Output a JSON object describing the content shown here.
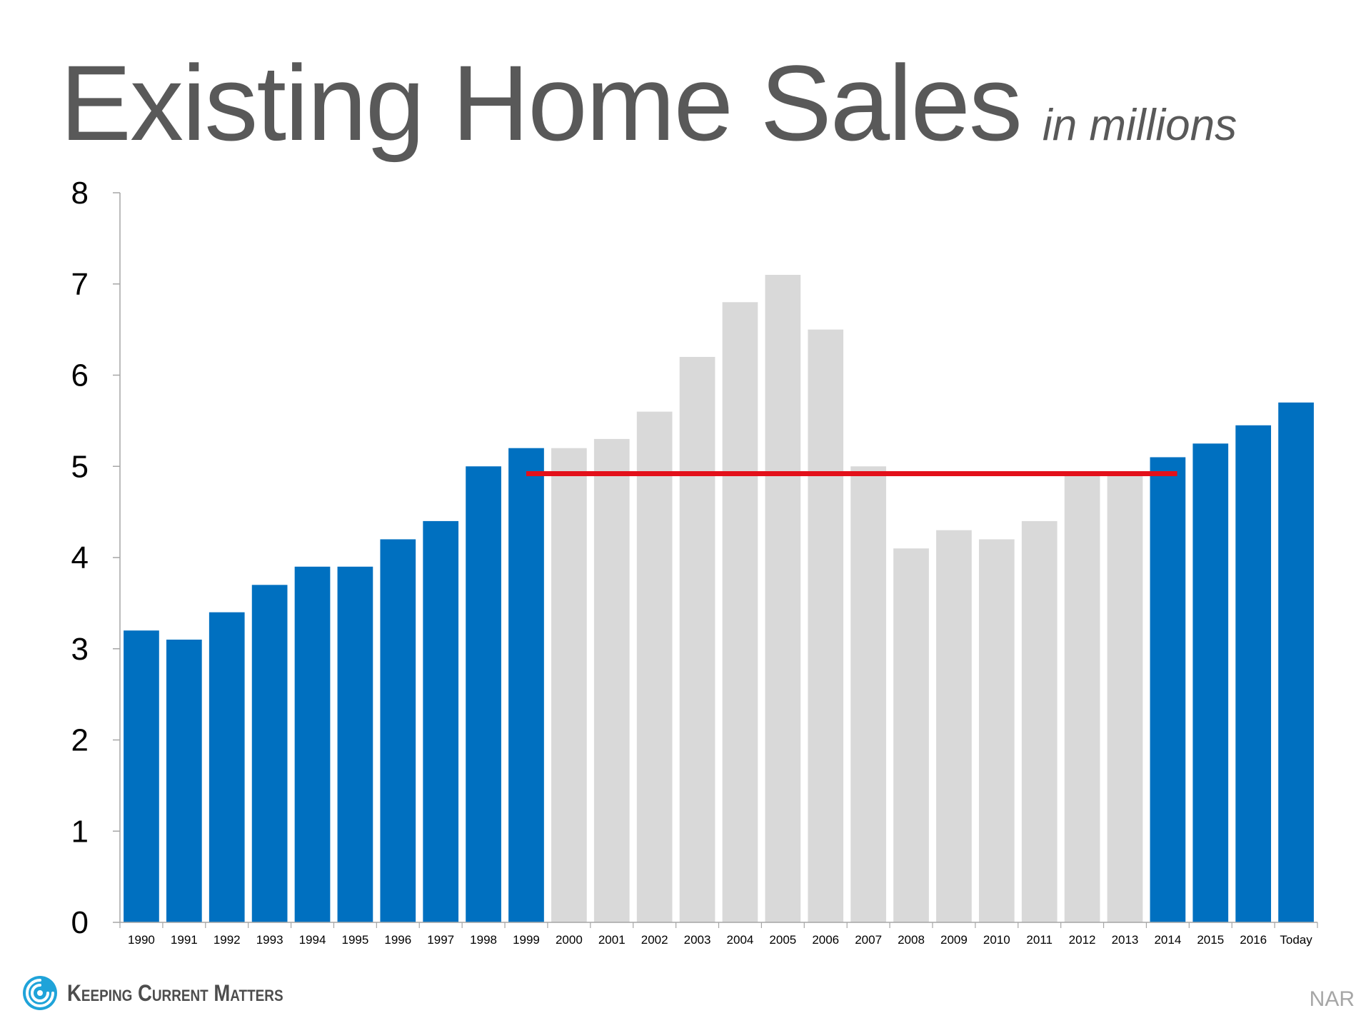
{
  "title": "Existing Home Sales",
  "subtitle": "in millions",
  "source": "NAR",
  "brand": {
    "name": "Keeping Current Matters",
    "icon": "swirl-logo-icon"
  },
  "colors": {
    "highlight": "#0070C0",
    "muted": "#D9D9D9",
    "reference_line": "#E3101A",
    "title": "#595959"
  },
  "chart_data": {
    "type": "bar",
    "categories": [
      "1990",
      "1991",
      "1992",
      "1993",
      "1994",
      "1995",
      "1996",
      "1997",
      "1998",
      "1999",
      "2000",
      "2001",
      "2002",
      "2003",
      "2004",
      "2005",
      "2006",
      "2007",
      "2008",
      "2009",
      "2010",
      "2011",
      "2012",
      "2013",
      "2014",
      "2015",
      "2016",
      "Today"
    ],
    "values": [
      3.2,
      3.1,
      3.4,
      3.7,
      3.9,
      3.9,
      4.2,
      4.4,
      5.0,
      5.2,
      5.2,
      5.3,
      5.6,
      6.2,
      6.8,
      7.1,
      6.5,
      5.0,
      4.1,
      4.3,
      4.2,
      4.4,
      4.9,
      4.9,
      5.1,
      5.25,
      5.45,
      5.7
    ],
    "highlighted": [
      true,
      true,
      true,
      true,
      true,
      true,
      true,
      true,
      true,
      true,
      false,
      false,
      false,
      false,
      false,
      false,
      false,
      false,
      false,
      false,
      false,
      false,
      false,
      false,
      true,
      true,
      true,
      true
    ],
    "reference_line": {
      "value": 4.92,
      "from": "1999",
      "to": "2014"
    },
    "ylim": [
      0,
      8
    ],
    "yticks": [
      0,
      1,
      2,
      3,
      4,
      5,
      6,
      7,
      8
    ],
    "xlabel": "",
    "ylabel": "",
    "grid": false,
    "legend": "none"
  }
}
